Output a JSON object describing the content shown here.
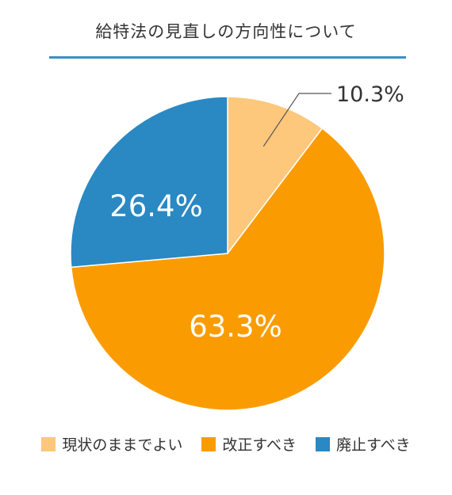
{
  "chart_data": {
    "type": "pie",
    "title": "給特法の見直しの方向性について",
    "start_angle_deg": 0,
    "direction": "clockwise",
    "slices": [
      {
        "label": "現状のままでよい",
        "value": 10.3,
        "display": "10.3%",
        "color": "#fdc77c",
        "label_position": "outside"
      },
      {
        "label": "改正すべき",
        "value": 63.3,
        "display": "63.3%",
        "color": "#fa9c01",
        "label_position": "inside"
      },
      {
        "label": "廃止すべき",
        "value": 26.4,
        "display": "26.4%",
        "color": "#2a88c3",
        "label_position": "inside"
      }
    ],
    "legend_position": "bottom"
  }
}
